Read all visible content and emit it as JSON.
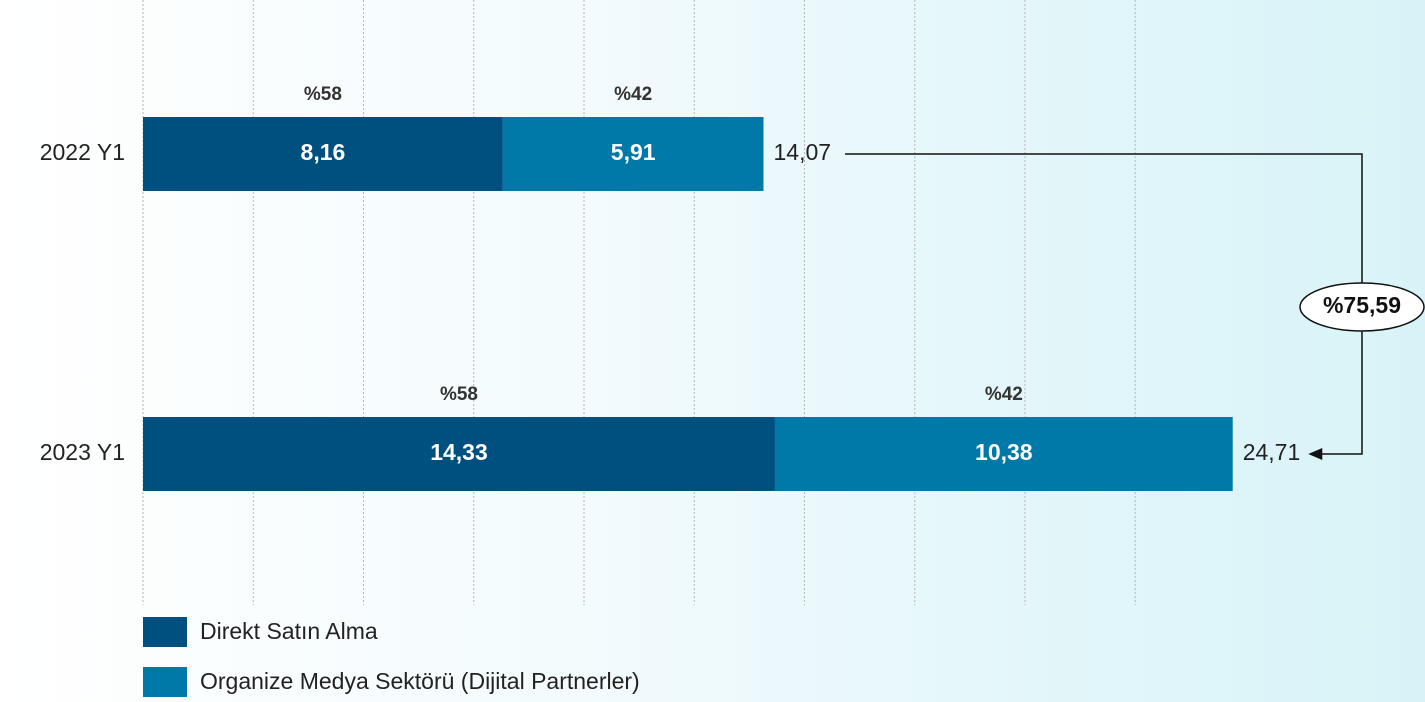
{
  "chart_data": {
    "type": "stacked-bar-horizontal",
    "categories": [
      "2022 Y1",
      "2023 Y1"
    ],
    "series": [
      {
        "name": "Direkt Satın Alma",
        "color": "#00507f",
        "values": [
          8.16,
          14.33
        ],
        "value_labels": [
          "8,16",
          "14,33"
        ],
        "shares": [
          58,
          58
        ],
        "share_labels": [
          "%58",
          "%58"
        ]
      },
      {
        "name": "Organize Medya Sektörü (Dijital Partnerler)",
        "color": "#0078a8",
        "values": [
          5.91,
          10.38
        ],
        "value_labels": [
          "5,91",
          "10,38"
        ],
        "shares": [
          42,
          42
        ],
        "share_labels": [
          "%42",
          "%42"
        ]
      }
    ],
    "totals": [
      14.07,
      24.71
    ],
    "total_labels": [
      "14,07",
      "24,71"
    ],
    "growth": {
      "value": 75.59,
      "label": "%75,59"
    },
    "xlim": [
      0,
      25
    ],
    "xticks": [
      0,
      2.5,
      5,
      7.5,
      10,
      12.5,
      15,
      17.5,
      20,
      22.5
    ],
    "grid": true
  }
}
